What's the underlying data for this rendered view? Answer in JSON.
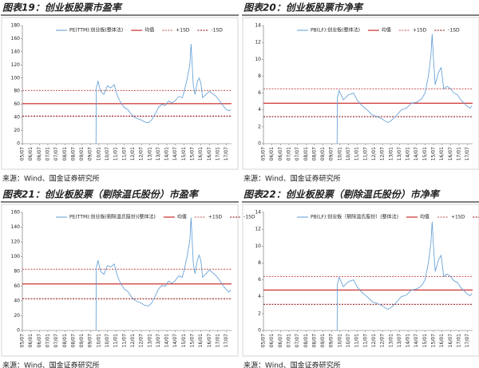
{
  "chart_data": [
    {
      "type": "line",
      "title": "图表19：创业板股票市盈率",
      "source": "来源：Wind、国金证券研究所",
      "xlim": [
        2005.5,
        2017.8
      ],
      "xticks": [
        {
          "value": 2005.5,
          "label": "05/07"
        },
        {
          "value": 2006,
          "label": "06/01"
        },
        {
          "value": 2006.5,
          "label": "06/07"
        },
        {
          "value": 2007,
          "label": "07/01"
        },
        {
          "value": 2007.5,
          "label": "07/07"
        },
        {
          "value": 2008,
          "label": "08/01"
        },
        {
          "value": 2008.5,
          "label": "08/07"
        },
        {
          "value": 2009,
          "label": "09/01"
        },
        {
          "value": 2009.5,
          "label": "09/07"
        },
        {
          "value": 2010,
          "label": "10/01"
        },
        {
          "value": 2010.5,
          "label": "10/07"
        },
        {
          "value": 2011,
          "label": "11/01"
        },
        {
          "value": 2011.5,
          "label": "11/07"
        },
        {
          "value": 2012,
          "label": "12/01"
        },
        {
          "value": 2012.5,
          "label": "12/07"
        },
        {
          "value": 2013,
          "label": "13/01"
        },
        {
          "value": 2013.5,
          "label": "13/07"
        },
        {
          "value": 2014,
          "label": "14/01"
        },
        {
          "value": 2014.5,
          "label": "14/07"
        },
        {
          "value": 2015,
          "label": "15/01"
        },
        {
          "value": 2015.5,
          "label": "15/07"
        },
        {
          "value": 2016,
          "label": "16/01"
        },
        {
          "value": 2016.5,
          "label": "16/07"
        },
        {
          "value": 2017,
          "label": "17/01"
        },
        {
          "value": 2017.5,
          "label": "17/07"
        }
      ],
      "ylim": [
        0,
        180
      ],
      "yticks": [
        0,
        20,
        40,
        60,
        80,
        100,
        120,
        140,
        160,
        180
      ],
      "grid": false,
      "series": [
        {
          "name": "PE(TTM):创业板(整体法)",
          "color": "#5b9bd5",
          "x": [
            2009.83,
            2009.85,
            2009.95,
            2010.1,
            2010.3,
            2010.5,
            2010.7,
            2010.9,
            2011.1,
            2011.3,
            2011.5,
            2011.7,
            2011.9,
            2012.1,
            2012.3,
            2012.5,
            2012.7,
            2012.9,
            2013.1,
            2013.3,
            2013.5,
            2013.7,
            2013.9,
            2014.1,
            2014.3,
            2014.5,
            2014.7,
            2014.9,
            2015.0,
            2015.2,
            2015.35,
            2015.42,
            2015.48,
            2015.55,
            2015.65,
            2015.8,
            2015.9,
            2016.0,
            2016.1,
            2016.3,
            2016.5,
            2016.7,
            2016.9,
            2017.1,
            2017.3,
            2017.5,
            2017.65,
            2017.75
          ],
          "values": [
            0,
            85,
            95,
            80,
            75,
            88,
            85,
            90,
            72,
            62,
            55,
            52,
            45,
            40,
            38,
            36,
            33,
            32,
            36,
            45,
            55,
            60,
            58,
            65,
            62,
            66,
            72,
            70,
            78,
            100,
            120,
            152,
            125,
            90,
            75,
            95,
            100,
            92,
            70,
            75,
            80,
            76,
            72,
            65,
            58,
            52,
            50,
            52
          ]
        }
      ],
      "reference_lines": [
        {
          "name": "均值",
          "color": "#c00000",
          "dashed": false,
          "value": 61
        },
        {
          "name": "+1SD",
          "color": "#c0504d",
          "dashed": true,
          "value": 81
        },
        {
          "name": "-1SD",
          "color": "#8b0000",
          "dashed": true,
          "value": 42
        }
      ]
    },
    {
      "type": "line",
      "title": "图表20：创业板股票市净率",
      "source": "来源：Wind、国金证券研究所",
      "xlim": [
        2005.5,
        2017.8
      ],
      "xticks": [
        {
          "value": 2005.5,
          "label": "05/07"
        },
        {
          "value": 2006,
          "label": "06/01"
        },
        {
          "value": 2006.5,
          "label": "06/07"
        },
        {
          "value": 2007,
          "label": "07/01"
        },
        {
          "value": 2007.5,
          "label": "07/07"
        },
        {
          "value": 2008,
          "label": "08/01"
        },
        {
          "value": 2008.5,
          "label": "08/07"
        },
        {
          "value": 2009,
          "label": "09/01"
        },
        {
          "value": 2009.5,
          "label": "09/07"
        },
        {
          "value": 2010,
          "label": "10/01"
        },
        {
          "value": 2010.5,
          "label": "10/07"
        },
        {
          "value": 2011,
          "label": "11/01"
        },
        {
          "value": 2011.5,
          "label": "11/07"
        },
        {
          "value": 2012,
          "label": "12/01"
        },
        {
          "value": 2012.5,
          "label": "12/07"
        },
        {
          "value": 2013,
          "label": "13/01"
        },
        {
          "value": 2013.5,
          "label": "13/07"
        },
        {
          "value": 2014,
          "label": "14/01"
        },
        {
          "value": 2014.5,
          "label": "14/07"
        },
        {
          "value": 2015,
          "label": "15/01"
        },
        {
          "value": 2015.5,
          "label": "15/07"
        },
        {
          "value": 2016,
          "label": "16/01"
        },
        {
          "value": 2016.5,
          "label": "16/07"
        },
        {
          "value": 2017,
          "label": "17/01"
        },
        {
          "value": 2017.5,
          "label": "17/07"
        }
      ],
      "ylim": [
        0,
        14
      ],
      "yticks": [
        0,
        2,
        4,
        6,
        8,
        10,
        12,
        14
      ],
      "grid": false,
      "series": [
        {
          "name": "PB(LF):创业板(整体法)",
          "color": "#5b9bd5",
          "x": [
            2009.83,
            2009.85,
            2009.95,
            2010.2,
            2010.5,
            2010.8,
            2011.0,
            2011.3,
            2011.6,
            2011.9,
            2012.2,
            2012.5,
            2012.8,
            2013.0,
            2013.3,
            2013.6,
            2013.9,
            2014.2,
            2014.5,
            2014.8,
            2015.0,
            2015.2,
            2015.35,
            2015.42,
            2015.5,
            2015.6,
            2015.8,
            2015.95,
            2016.1,
            2016.3,
            2016.5,
            2016.7,
            2016.9,
            2017.1,
            2017.3,
            2017.5,
            2017.65,
            2017.75
          ],
          "values": [
            0,
            5.5,
            6.3,
            5.2,
            5.8,
            6.0,
            5.2,
            4.5,
            4.0,
            3.4,
            3.2,
            2.9,
            2.5,
            2.7,
            3.3,
            4.0,
            4.2,
            4.8,
            4.9,
            5.3,
            6.0,
            8.0,
            10.5,
            13.0,
            10.0,
            7.0,
            8.5,
            9.0,
            6.5,
            6.8,
            6.5,
            6.0,
            5.8,
            5.2,
            4.8,
            4.4,
            4.2,
            4.5
          ]
        }
      ],
      "reference_lines": [
        {
          "name": "均值",
          "color": "#c00000",
          "dashed": false,
          "value": 4.8
        },
        {
          "name": "+1SD",
          "color": "#c0504d",
          "dashed": true,
          "value": 6.5
        },
        {
          "name": "-1SD",
          "color": "#8b0000",
          "dashed": true,
          "value": 3.2
        }
      ]
    },
    {
      "type": "line",
      "title": "图表21：创业板股票（剔除温氏股份）市盈率",
      "source": "来源：Wind、国金证券研究所",
      "xlim": [
        2005.5,
        2017.8
      ],
      "xticks": [
        {
          "value": 2005.5,
          "label": "05/07"
        },
        {
          "value": 2006,
          "label": "06/01"
        },
        {
          "value": 2006.5,
          "label": "06/07"
        },
        {
          "value": 2007,
          "label": "07/01"
        },
        {
          "value": 2007.5,
          "label": "07/07"
        },
        {
          "value": 2008,
          "label": "08/01"
        },
        {
          "value": 2008.5,
          "label": "08/07"
        },
        {
          "value": 2009,
          "label": "09/01"
        },
        {
          "value": 2009.5,
          "label": "09/07"
        },
        {
          "value": 2010,
          "label": "10/01"
        },
        {
          "value": 2010.5,
          "label": "10/07"
        },
        {
          "value": 2011,
          "label": "11/01"
        },
        {
          "value": 2011.5,
          "label": "11/07"
        },
        {
          "value": 2012,
          "label": "12/01"
        },
        {
          "value": 2012.5,
          "label": "12/07"
        },
        {
          "value": 2013,
          "label": "13/01"
        },
        {
          "value": 2013.5,
          "label": "13/07"
        },
        {
          "value": 2014,
          "label": "14/01"
        },
        {
          "value": 2014.5,
          "label": "14/07"
        },
        {
          "value": 2015,
          "label": "15/01"
        },
        {
          "value": 2015.5,
          "label": "15/07"
        },
        {
          "value": 2016,
          "label": "16/01"
        },
        {
          "value": 2016.5,
          "label": "16/07"
        },
        {
          "value": 2017,
          "label": "17/01"
        },
        {
          "value": 2017.5,
          "label": "17/07"
        }
      ],
      "ylim": [
        0,
        160
      ],
      "yticks": [
        0,
        20,
        40,
        60,
        80,
        100,
        120,
        140,
        160
      ],
      "grid": false,
      "series": [
        {
          "name": "PE(TTM):创业板(剔除温氏股份)(整体法)",
          "color": "#5b9bd5",
          "x": [
            2009.83,
            2009.85,
            2009.95,
            2010.1,
            2010.3,
            2010.5,
            2010.7,
            2010.9,
            2011.1,
            2011.3,
            2011.5,
            2011.7,
            2011.9,
            2012.1,
            2012.3,
            2012.5,
            2012.7,
            2012.9,
            2013.1,
            2013.3,
            2013.5,
            2013.7,
            2013.9,
            2014.1,
            2014.3,
            2014.5,
            2014.7,
            2014.9,
            2015.0,
            2015.2,
            2015.35,
            2015.42,
            2015.48,
            2015.55,
            2015.65,
            2015.8,
            2015.9,
            2016.0,
            2016.1,
            2016.3,
            2016.5,
            2016.7,
            2016.9,
            2017.1,
            2017.3,
            2017.5,
            2017.65,
            2017.75
          ],
          "values": [
            0,
            85,
            95,
            80,
            76,
            88,
            86,
            90,
            73,
            63,
            56,
            53,
            46,
            41,
            39,
            37,
            34,
            33,
            37,
            46,
            56,
            61,
            60,
            67,
            64,
            68,
            74,
            72,
            80,
            102,
            122,
            153,
            126,
            92,
            77,
            96,
            102,
            94,
            72,
            77,
            82,
            78,
            74,
            68,
            61,
            55,
            52,
            55
          ]
        }
      ],
      "reference_lines": [
        {
          "name": "均值",
          "color": "#c00000",
          "dashed": false,
          "value": 63
        },
        {
          "name": "+1SD",
          "color": "#c0504d",
          "dashed": true,
          "value": 83
        },
        {
          "name": "-1SD",
          "color": "#8b0000",
          "dashed": true,
          "value": 43
        }
      ]
    },
    {
      "type": "line",
      "title": "图表22：创业板股票（剔除温氏股份）市净率",
      "source": "来源：Wind、国金证券研究所",
      "xlim": [
        2005.5,
        2017.8
      ],
      "xticks": [
        {
          "value": 2005.5,
          "label": "05/07"
        },
        {
          "value": 2006,
          "label": "06/01"
        },
        {
          "value": 2006.5,
          "label": "06/07"
        },
        {
          "value": 2007,
          "label": "07/01"
        },
        {
          "value": 2007.5,
          "label": "07/07"
        },
        {
          "value": 2008,
          "label": "08/01"
        },
        {
          "value": 2008.5,
          "label": "08/07"
        },
        {
          "value": 2009,
          "label": "09/01"
        },
        {
          "value": 2009.5,
          "label": "09/07"
        },
        {
          "value": 2010,
          "label": "10/01"
        },
        {
          "value": 2010.5,
          "label": "10/07"
        },
        {
          "value": 2011,
          "label": "11/01"
        },
        {
          "value": 2011.5,
          "label": "11/07"
        },
        {
          "value": 2012,
          "label": "12/01"
        },
        {
          "value": 2012.5,
          "label": "12/07"
        },
        {
          "value": 2013,
          "label": "13/01"
        },
        {
          "value": 2013.5,
          "label": "13/07"
        },
        {
          "value": 2014,
          "label": "14/01"
        },
        {
          "value": 2014.5,
          "label": "14/07"
        },
        {
          "value": 2015,
          "label": "15/01"
        },
        {
          "value": 2015.5,
          "label": "15/07"
        },
        {
          "value": 2016,
          "label": "16/01"
        },
        {
          "value": 2016.5,
          "label": "16/07"
        },
        {
          "value": 2017,
          "label": "17/01"
        },
        {
          "value": 2017.5,
          "label": "17/07"
        }
      ],
      "ylim": [
        0,
        14
      ],
      "yticks": [
        0,
        2,
        4,
        6,
        8,
        10,
        12,
        14
      ],
      "grid": false,
      "series": [
        {
          "name": "PB(LF):创业板（剔除温氏股份）(整体法)",
          "color": "#5b9bd5",
          "x": [
            2009.83,
            2009.85,
            2009.95,
            2010.2,
            2010.5,
            2010.8,
            2011.0,
            2011.3,
            2011.6,
            2011.9,
            2012.2,
            2012.5,
            2012.8,
            2013.0,
            2013.3,
            2013.6,
            2013.9,
            2014.2,
            2014.5,
            2014.8,
            2015.0,
            2015.2,
            2015.35,
            2015.42,
            2015.5,
            2015.6,
            2015.8,
            2015.95,
            2016.1,
            2016.3,
            2016.5,
            2016.7,
            2016.9,
            2017.1,
            2017.3,
            2017.5,
            2017.65,
            2017.75
          ],
          "values": [
            0,
            5.5,
            6.3,
            5.2,
            5.8,
            6.0,
            5.2,
            4.5,
            4.0,
            3.4,
            3.2,
            2.9,
            2.5,
            2.7,
            3.3,
            4.0,
            4.2,
            4.8,
            4.9,
            5.3,
            6.0,
            8.0,
            10.4,
            12.9,
            10.0,
            7.0,
            8.4,
            8.9,
            6.4,
            6.7,
            6.4,
            5.9,
            5.7,
            5.1,
            4.7,
            4.3,
            4.1,
            4.4
          ]
        }
      ],
      "reference_lines": [
        {
          "name": "均值",
          "color": "#c00000",
          "dashed": false,
          "value": 4.8
        },
        {
          "name": "+1SD",
          "color": "#c0504d",
          "dashed": true,
          "value": 6.4
        },
        {
          "name": "-1SD",
          "color": "#8b0000",
          "dashed": true,
          "value": 3.1
        }
      ]
    }
  ]
}
